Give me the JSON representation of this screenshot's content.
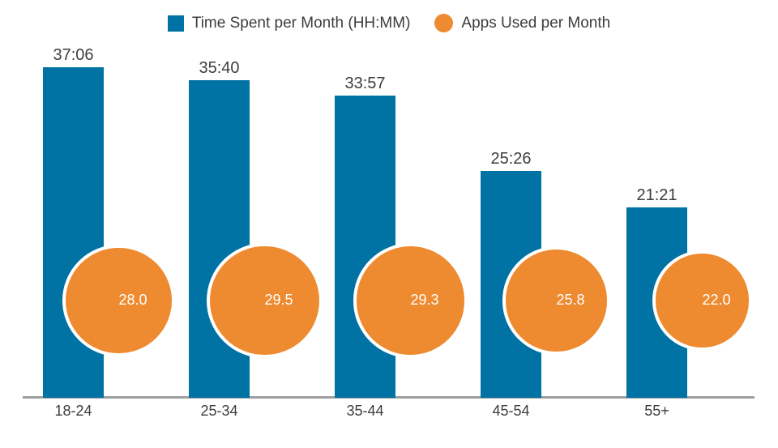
{
  "legend": {
    "time_label": "Time Spent per Month (HH:MM)",
    "apps_label": "Apps Used per Month"
  },
  "colors": {
    "bar": "#0072a3",
    "bubble": "#ee8a2f",
    "bubble_ring": "#ffffff",
    "bubble_text": "#ffffff",
    "label_text": "#3d3d3d",
    "axis_line": "#9e9e9e",
    "background": "#ffffff"
  },
  "chart_data": {
    "type": "bar",
    "categories": [
      "18-24",
      "25-34",
      "35-44",
      "45-54",
      "55+"
    ],
    "series": [
      {
        "name": "Time Spent per Month (HH:MM)",
        "type": "bar",
        "unit": "HH:MM",
        "labels": [
          "37:06",
          "35:40",
          "33:57",
          "25:26",
          "21:21"
        ],
        "values_hours": [
          37.1,
          35.67,
          33.95,
          25.43,
          21.35
        ]
      },
      {
        "name": "Apps Used per Month",
        "type": "bubble",
        "labels": [
          "28.0",
          "29.5",
          "29.3",
          "25.8",
          "22.0"
        ],
        "values": [
          28.0,
          29.5,
          29.3,
          25.8,
          22.0
        ]
      }
    ],
    "legend_position": "top",
    "grid": false,
    "y_axis_visible": false,
    "baseline_visible": true
  }
}
